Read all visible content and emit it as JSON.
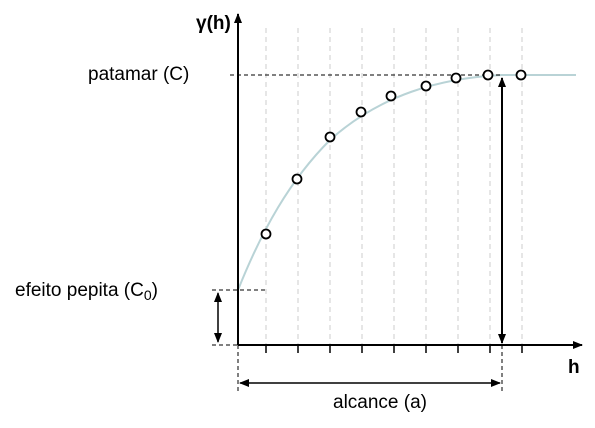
{
  "y_axis_label": "γ(h)",
  "x_axis_label": "h",
  "sill_label": "patamar (C)",
  "nugget_label": [
    "efeito pepita (C",
    "0",
    ")"
  ],
  "range_label": "alcance (a)"
}
